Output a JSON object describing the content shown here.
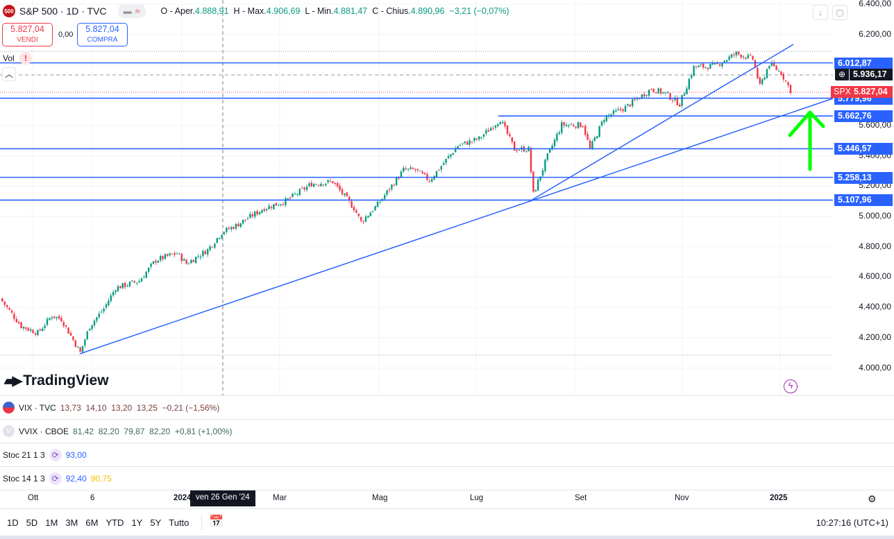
{
  "header": {
    "logo": "500",
    "symbol": "S&P 500 · 1D · TVC",
    "ohlc": [
      {
        "label": "O - Aper.",
        "value": "4.888,91"
      },
      {
        "label": "H - Max.",
        "value": "4.906,69"
      },
      {
        "label": "L - Min.",
        "value": "4.881,47"
      },
      {
        "label": "C - Chius.",
        "value": "4.890,96"
      }
    ],
    "change": "−3,21 (−0,07%)"
  },
  "trade": {
    "sell_price": "5.827,04",
    "sell_label": "VENDI",
    "spread": "0,00",
    "buy_price": "5.827,04",
    "buy_label": "COMPRA"
  },
  "vol_label": "Vol",
  "vol_warning": "!",
  "price_axis": [
    "6.400,00",
    "6.200,00",
    "5.600,00",
    "5.400,00",
    "5.200,00",
    "5.000,00",
    "4.800,00",
    "4.600,00",
    "4.400,00",
    "4.200,00",
    "4.000,00"
  ],
  "levels": [
    {
      "value": "6.012,87",
      "price": 6012.87
    },
    {
      "value": "5.779,96",
      "price": 5779.96
    },
    {
      "value": "5.662,76",
      "price": 5662.76
    },
    {
      "value": "5.446,57",
      "price": 5446.57
    },
    {
      "value": "5.258,13",
      "price": 5258.13
    },
    {
      "value": "5.107,96",
      "price": 5107.96
    }
  ],
  "crosshair_price": "5.936,17",
  "current": {
    "symbol": "SPX",
    "price": "5.827,04"
  },
  "watermark": "TradingView",
  "colors": {
    "up": "#089981",
    "down": "#f23645",
    "line": "#2962ff",
    "arrow": "#00ff00"
  },
  "chart_data": {
    "type": "candlestick",
    "note": "approximate daily closes, day index vs price",
    "keypoints": [
      [
        0,
        4460
      ],
      [
        9,
        4277
      ],
      [
        16,
        4232
      ],
      [
        22,
        4346
      ],
      [
        26,
        4323
      ],
      [
        34,
        4103
      ],
      [
        38,
        4277
      ],
      [
        44,
        4392
      ],
      [
        49,
        4529
      ],
      [
        59,
        4575
      ],
      [
        66,
        4712
      ],
      [
        75,
        4758
      ],
      [
        79,
        4689
      ],
      [
        88,
        4780
      ],
      [
        94,
        4895
      ],
      [
        100,
        4941
      ],
      [
        112,
        5055
      ],
      [
        121,
        5101
      ],
      [
        132,
        5215
      ],
      [
        141,
        5229
      ],
      [
        150,
        5055
      ],
      [
        153,
        4964
      ],
      [
        160,
        5078
      ],
      [
        171,
        5307
      ],
      [
        176,
        5307
      ],
      [
        182,
        5238
      ],
      [
        194,
        5467
      ],
      [
        203,
        5513
      ],
      [
        212,
        5641
      ],
      [
        218,
        5444
      ],
      [
        224,
        5444
      ],
      [
        226,
        5147
      ],
      [
        232,
        5398
      ],
      [
        238,
        5604
      ],
      [
        247,
        5604
      ],
      [
        250,
        5444
      ],
      [
        256,
        5650
      ],
      [
        265,
        5719
      ],
      [
        276,
        5842
      ],
      [
        282,
        5810
      ],
      [
        288,
        5741
      ],
      [
        294,
        5984
      ],
      [
        303,
        5993
      ],
      [
        312,
        6075
      ],
      [
        319,
        6039
      ],
      [
        322,
        5856
      ],
      [
        326,
        6007
      ],
      [
        331,
        5947
      ],
      [
        335,
        5833
      ]
    ]
  },
  "panes": [
    {
      "name": "VIX · TVC",
      "values": "13,73  14,10  13,20  13,25  −0,21 (−1,56%)",
      "color": "#7a3b3b"
    },
    {
      "name": "VVIX · CBOE",
      "values": "81,42  82,20  79,87  82,20  +0,81 (+1,00%)",
      "color": "#3a6b4f"
    },
    {
      "name": "Stoc 21 1 3",
      "v1": "93,00"
    },
    {
      "name": "Stoc 14 1 3",
      "v1": "92,40",
      "v2": "90,75"
    }
  ],
  "time_axis": [
    "Ott",
    "6",
    "2024",
    "Mar",
    "Mag",
    "Lug",
    "Set",
    "Nov",
    "2025"
  ],
  "crosshair_date": "ven 26 Gen '24",
  "ranges": [
    "1D",
    "5D",
    "1M",
    "3M",
    "6M",
    "YTD",
    "1Y",
    "5Y",
    "Tutto"
  ],
  "clock": "10:27:16 (UTC+1)"
}
